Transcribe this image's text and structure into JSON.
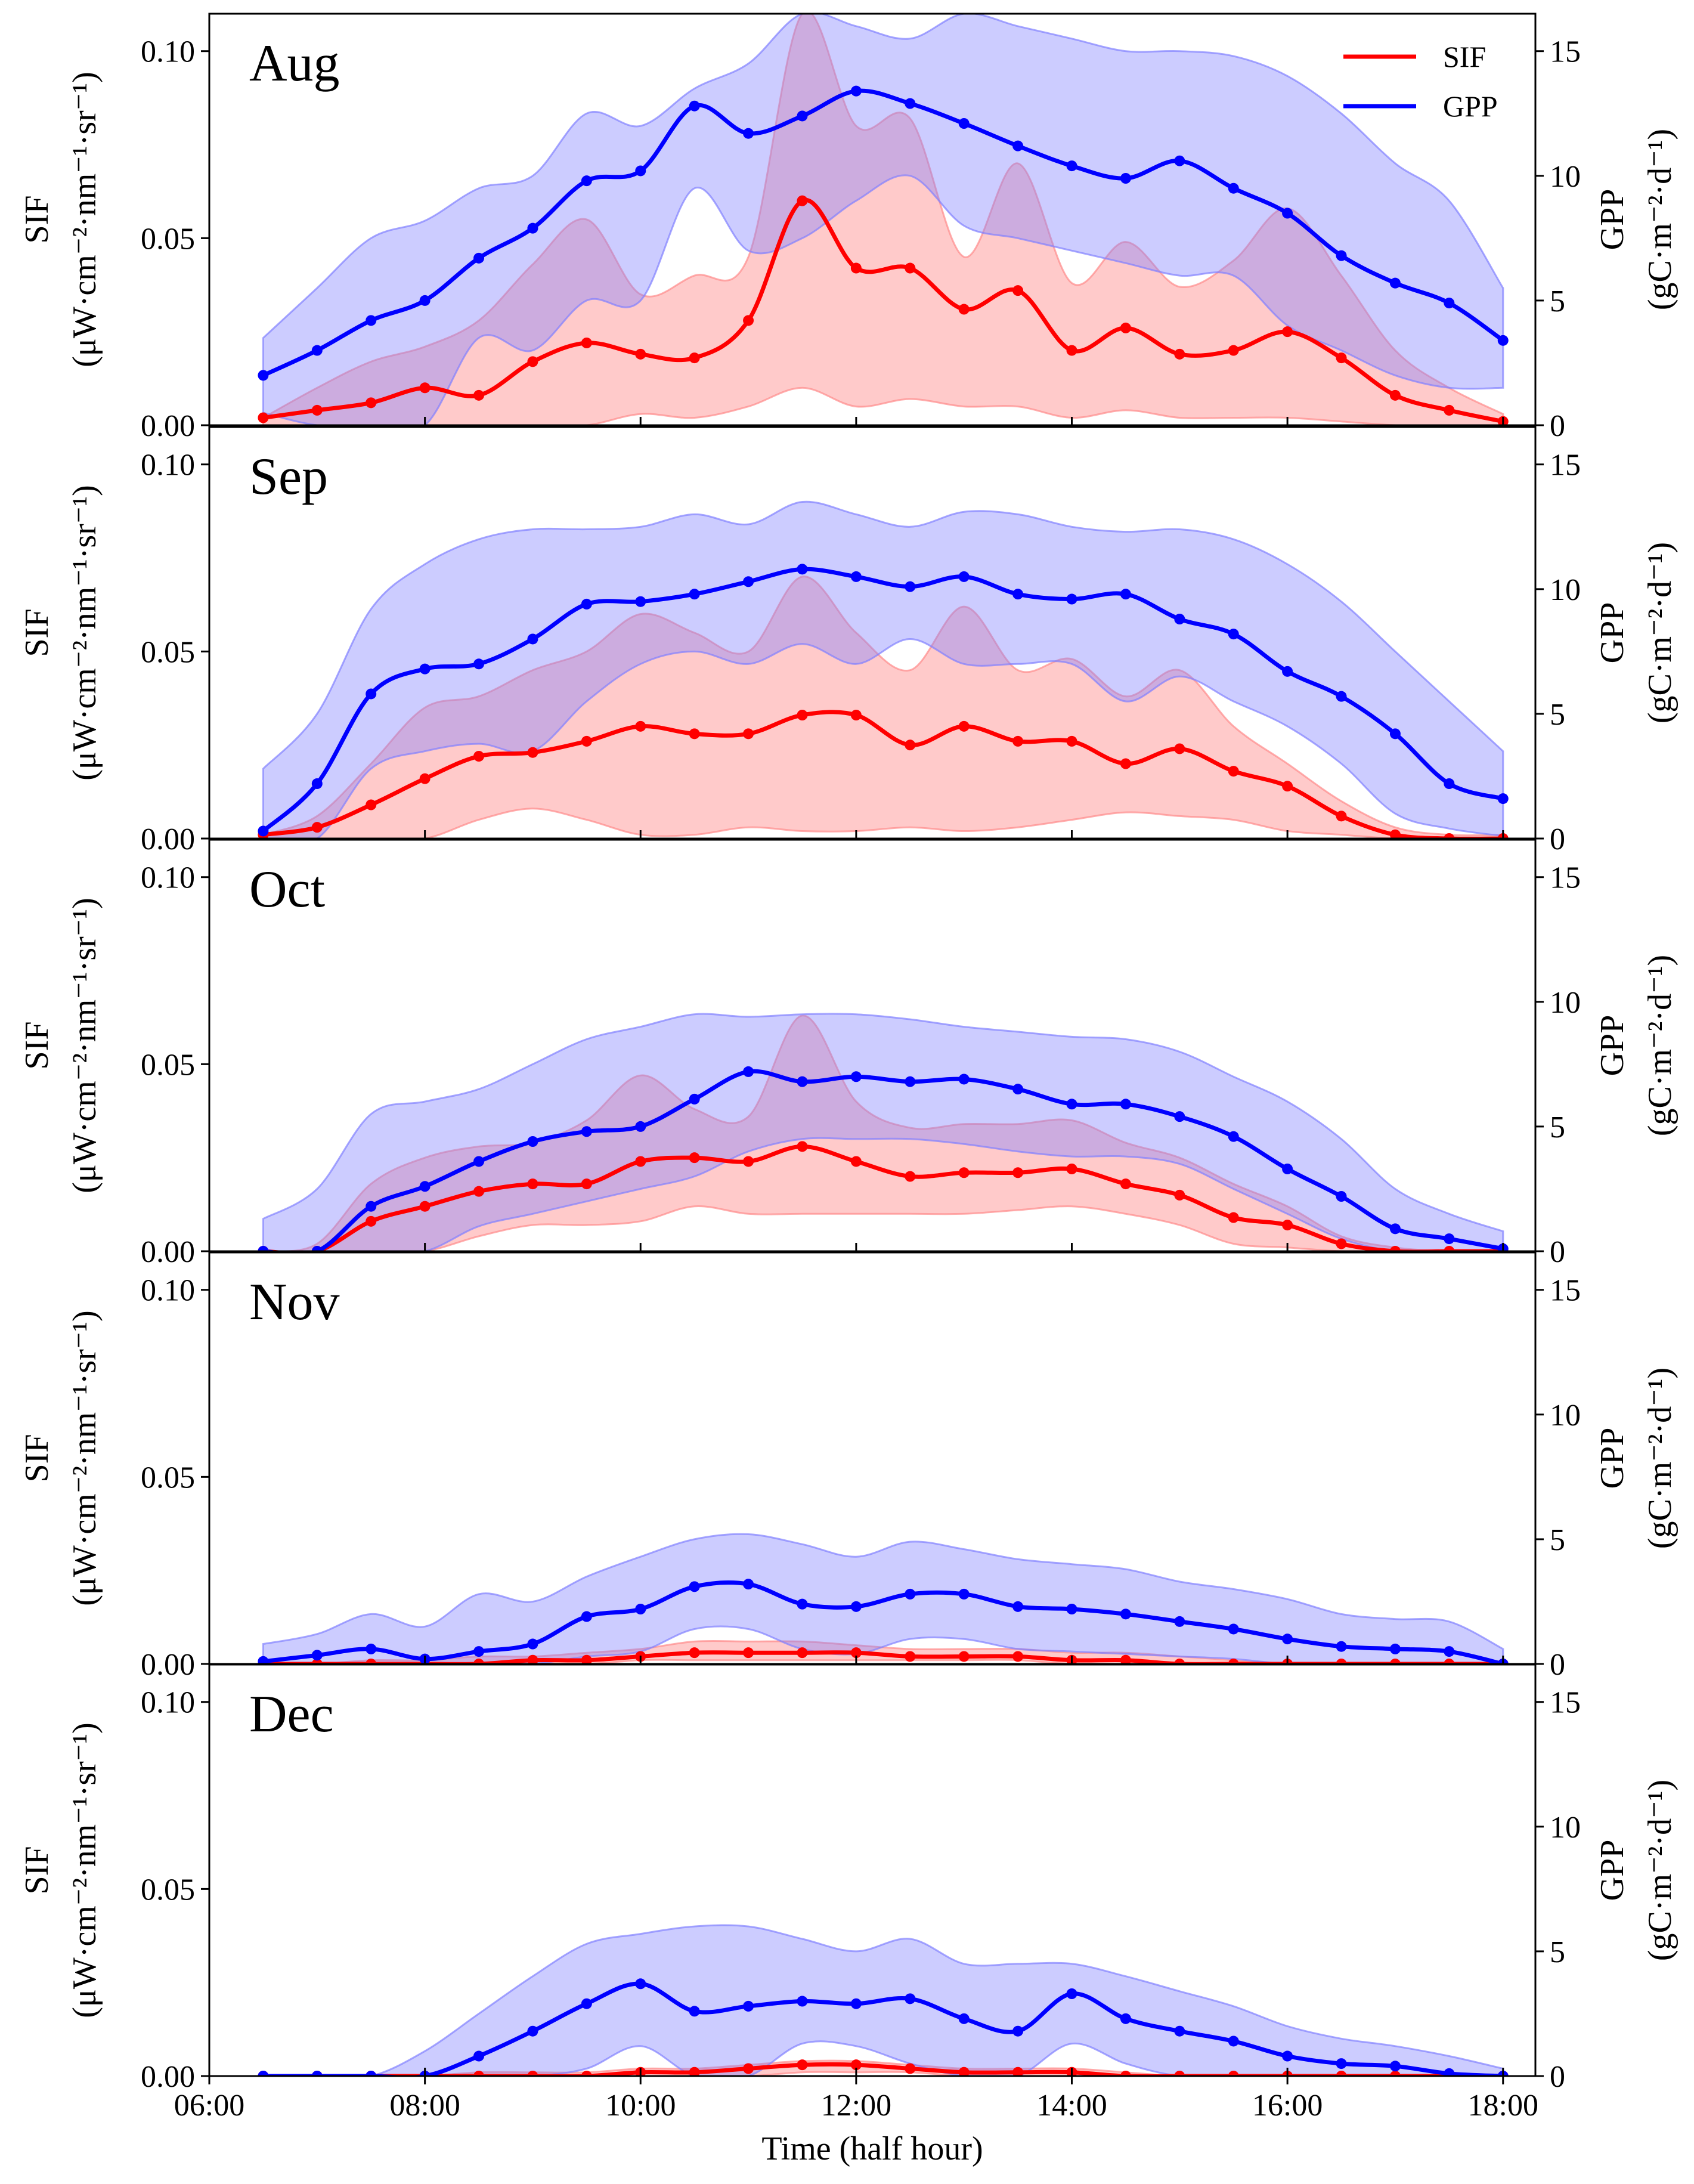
{
  "chart_data": {
    "type": "line",
    "xlabel": "Time (half hour)",
    "x_tick_labels": [
      "06:00",
      "08:00",
      "10:00",
      "12:00",
      "14:00",
      "16:00",
      "18:00"
    ],
    "x_tick_hours": [
      6,
      8,
      10,
      12,
      14,
      16,
      18
    ],
    "xlim": [
      6.0,
      18.3
    ],
    "sif_axis": {
      "label": "SIF",
      "unit": "(μW·cm⁻²·nm⁻¹·sr⁻¹)",
      "ylim": [
        0,
        0.11
      ],
      "tick_values": [
        0,
        0.05,
        0.1
      ],
      "tick_labels": [
        "0.00",
        "0.05",
        "0.10"
      ]
    },
    "gpp_axis": {
      "label": "GPP",
      "unit": "(gC·m⁻²·d⁻¹)",
      "ylim": [
        0,
        16.5
      ],
      "tick_values": [
        0,
        5,
        10,
        15
      ],
      "tick_labels": [
        "0",
        "5",
        "10",
        "15"
      ]
    },
    "legend": [
      {
        "name": "SIF",
        "color": "#ff0000"
      },
      {
        "name": "GPP",
        "color": "#0000ff"
      }
    ],
    "legend_position": "top-right",
    "colors": {
      "sif": "#ff0000",
      "gpp": "#0000ff",
      "sif_band": "#ff8a8a",
      "gpp_band": "#8080ff"
    },
    "x": [
      6.5,
      7.0,
      7.5,
      8.0,
      8.5,
      9.0,
      9.5,
      10.0,
      10.5,
      11.0,
      11.5,
      12.0,
      12.5,
      13.0,
      13.5,
      14.0,
      14.5,
      15.0,
      15.5,
      16.0,
      16.5,
      17.0,
      17.5,
      18.0
    ],
    "panels": [
      {
        "month": "Aug",
        "sif": [
          0.002,
          0.004,
          0.006,
          0.01,
          0.008,
          0.017,
          0.022,
          0.019,
          0.018,
          0.028,
          0.06,
          0.042,
          0.042,
          0.031,
          0.036,
          0.02,
          0.026,
          0.019,
          0.02,
          0.025,
          0.018,
          0.008,
          0.004,
          0.001
        ],
        "sif_band_upper": [
          0.002,
          0.01,
          0.017,
          0.021,
          0.028,
          0.043,
          0.055,
          0.035,
          0.04,
          0.045,
          0.11,
          0.08,
          0.082,
          0.045,
          0.07,
          0.038,
          0.049,
          0.037,
          0.044,
          0.058,
          0.04,
          0.02,
          0.01,
          0.003
        ],
        "sif_band_lower": [
          0,
          0,
          0,
          0,
          0,
          0,
          0,
          0.003,
          0.002,
          0.005,
          0.01,
          0.005,
          0.007,
          0.005,
          0.005,
          0.002,
          0.004,
          0.002,
          0.002,
          0.002,
          0.001,
          0,
          0,
          0
        ],
        "gpp": [
          2.0,
          3.0,
          4.2,
          5.0,
          6.7,
          7.9,
          9.8,
          10.2,
          12.8,
          11.7,
          12.4,
          13.4,
          12.9,
          12.1,
          11.2,
          10.4,
          9.9,
          10.6,
          9.5,
          8.5,
          6.8,
          5.7,
          4.9,
          3.4
        ],
        "gpp_band_upper": [
          3.5,
          5.5,
          7.5,
          8.2,
          9.5,
          10.0,
          12.5,
          12.0,
          13.5,
          14.5,
          16.5,
          16.0,
          15.5,
          16.5,
          16.0,
          15.5,
          15.0,
          15.0,
          14.8,
          14.0,
          12.5,
          10.5,
          9.0,
          5.5
        ],
        "gpp_band_lower": [
          0.5,
          0,
          0,
          0,
          3.5,
          3.0,
          5.0,
          5.0,
          9.5,
          7.0,
          7.5,
          9.0,
          10.0,
          8.0,
          7.5,
          7.0,
          6.5,
          6.0,
          6.0,
          4.0,
          3.0,
          2.0,
          1.5,
          1.5
        ]
      },
      {
        "month": "Sep",
        "sif": [
          0.001,
          0.003,
          0.009,
          0.016,
          0.022,
          0.023,
          0.026,
          0.03,
          0.028,
          0.028,
          0.033,
          0.033,
          0.025,
          0.03,
          0.026,
          0.026,
          0.02,
          0.024,
          0.018,
          0.014,
          0.006,
          0.001,
          0.0,
          0.0
        ],
        "sif_band_upper": [
          0.001,
          0.006,
          0.02,
          0.035,
          0.038,
          0.045,
          0.05,
          0.06,
          0.055,
          0.05,
          0.07,
          0.055,
          0.045,
          0.062,
          0.045,
          0.048,
          0.038,
          0.045,
          0.03,
          0.02,
          0.01,
          0.003,
          0.001,
          0.001
        ],
        "sif_band_lower": [
          0,
          0,
          0,
          0,
          0.005,
          0.008,
          0.005,
          0.001,
          0.001,
          0.003,
          0.002,
          0.002,
          0.003,
          0.002,
          0.003,
          0.005,
          0.007,
          0.006,
          0.005,
          0.002,
          0.001,
          0,
          0,
          0
        ],
        "gpp": [
          0.3,
          2.2,
          5.8,
          6.8,
          7.0,
          8.0,
          9.4,
          9.5,
          9.8,
          10.3,
          10.8,
          10.5,
          10.1,
          10.5,
          9.8,
          9.6,
          9.8,
          8.8,
          8.2,
          6.7,
          5.7,
          4.2,
          2.2,
          1.6
        ],
        "gpp_band_upper": [
          2.8,
          5.0,
          9.2,
          11.0,
          12.0,
          12.4,
          12.4,
          12.5,
          13.0,
          12.6,
          13.5,
          13.0,
          12.5,
          13.1,
          13.0,
          12.5,
          12.3,
          12.4,
          12.0,
          11.0,
          9.5,
          7.5,
          5.5,
          3.5
        ],
        "gpp_band_lower": [
          0,
          0,
          2.8,
          3.5,
          3.8,
          3.5,
          5.5,
          7.0,
          7.5,
          7.0,
          7.8,
          7.0,
          8.0,
          7.0,
          7.0,
          7.0,
          5.5,
          6.5,
          5.5,
          4.5,
          3.0,
          1.0,
          0.4,
          0.1
        ]
      },
      {
        "month": "Oct",
        "sif": [
          0.0,
          0.0,
          0.008,
          0.012,
          0.016,
          0.018,
          0.018,
          0.024,
          0.025,
          0.024,
          0.028,
          0.024,
          0.02,
          0.021,
          0.021,
          0.022,
          0.018,
          0.015,
          0.009,
          0.007,
          0.002,
          0.0,
          0.0,
          0.0
        ],
        "sif_band_upper": [
          0.0,
          0.002,
          0.018,
          0.025,
          0.028,
          0.029,
          0.035,
          0.047,
          0.038,
          0.036,
          0.063,
          0.04,
          0.033,
          0.034,
          0.034,
          0.035,
          0.029,
          0.025,
          0.018,
          0.012,
          0.004,
          0.001,
          0.0,
          0.0
        ],
        "sif_band_lower": [
          0,
          0,
          0,
          0,
          0.004,
          0.007,
          0.007,
          0.008,
          0.012,
          0.01,
          0.01,
          0.01,
          0.01,
          0.01,
          0.011,
          0.012,
          0.01,
          0.007,
          0.002,
          0.001,
          0,
          0,
          0,
          0
        ],
        "gpp": [
          0,
          0,
          1.8,
          2.6,
          3.6,
          4.4,
          4.8,
          5.0,
          6.1,
          7.2,
          6.8,
          7.0,
          6.8,
          6.9,
          6.5,
          5.9,
          5.9,
          5.4,
          4.6,
          3.3,
          2.2,
          0.9,
          0.5,
          0.1
        ],
        "gpp_band_upper": [
          1.3,
          2.5,
          5.5,
          6.0,
          6.5,
          7.5,
          8.5,
          9.0,
          9.5,
          9.4,
          9.5,
          9.5,
          9.3,
          9.0,
          8.8,
          8.6,
          8.5,
          8.0,
          7.0,
          6.0,
          4.5,
          2.5,
          1.5,
          0.8
        ],
        "gpp_band_lower": [
          0,
          0,
          0,
          0,
          1.0,
          1.5,
          2.0,
          2.5,
          3.0,
          4.0,
          4.5,
          4.5,
          4.5,
          4.3,
          4.0,
          3.8,
          3.8,
          3.5,
          2.5,
          1.5,
          0.5,
          0,
          0,
          0
        ]
      },
      {
        "month": "Nov",
        "sif": [
          0.0,
          0.0,
          0.0,
          0.0,
          0.0,
          0.001,
          0.001,
          0.002,
          0.003,
          0.003,
          0.003,
          0.003,
          0.002,
          0.002,
          0.002,
          0.001,
          0.001,
          0.0,
          0.0,
          0.0,
          0.0,
          0.0,
          0.0,
          0.0
        ],
        "sif_band_upper": [
          0.0,
          0.0,
          0.001,
          0.001,
          0.002,
          0.002,
          0.003,
          0.004,
          0.006,
          0.006,
          0.006,
          0.005,
          0.004,
          0.004,
          0.004,
          0.003,
          0.003,
          0.002,
          0.001,
          0.0,
          0.0,
          0.0,
          0.0,
          0.0
        ],
        "sif_band_lower": [
          0,
          0,
          0,
          0,
          0,
          0,
          0,
          0.001,
          0.001,
          0.001,
          0.001,
          0.001,
          0.001,
          0.001,
          0.001,
          0,
          0,
          0,
          0,
          0,
          0,
          0,
          0,
          0
        ],
        "gpp": [
          0.1,
          0.35,
          0.6,
          0.2,
          0.5,
          0.8,
          1.9,
          2.2,
          3.1,
          3.2,
          2.4,
          2.3,
          2.8,
          2.8,
          2.3,
          2.2,
          2.0,
          1.7,
          1.4,
          1.0,
          0.7,
          0.6,
          0.5,
          0.0
        ],
        "gpp_band_upper": [
          0.8,
          1.2,
          2.0,
          1.5,
          2.8,
          2.5,
          3.5,
          4.3,
          5.0,
          5.2,
          4.8,
          4.3,
          4.9,
          4.6,
          4.2,
          4.0,
          3.8,
          3.3,
          3.0,
          2.6,
          2.0,
          1.8,
          1.7,
          0.6
        ],
        "gpp_band_lower": [
          0,
          0,
          0,
          0,
          0,
          0,
          0.3,
          0.5,
          1.4,
          1.4,
          0.6,
          0.4,
          1.0,
          1.0,
          0.6,
          0.5,
          0.4,
          0.3,
          0.2,
          0,
          0,
          0,
          0,
          0
        ]
      },
      {
        "month": "Dec",
        "sif": [
          0.0,
          0.0,
          0.0,
          0.0,
          0.0,
          0.0,
          0.0,
          0.001,
          0.001,
          0.002,
          0.003,
          0.003,
          0.002,
          0.001,
          0.001,
          0.001,
          0.0,
          0.0,
          0.0,
          0.0,
          0.0,
          0.0,
          0.0,
          0.0
        ],
        "sif_band_upper": [
          0.0,
          0.0,
          0.0,
          0.0,
          0.001,
          0.001,
          0.001,
          0.002,
          0.002,
          0.003,
          0.004,
          0.004,
          0.003,
          0.002,
          0.002,
          0.002,
          0.001,
          0.0,
          0.0,
          0.0,
          0.0,
          0.0,
          0.0,
          0.0
        ],
        "sif_band_lower": [
          0,
          0,
          0,
          0,
          0,
          0,
          0,
          0,
          0,
          0,
          0.001,
          0.001,
          0.001,
          0,
          0,
          0,
          0,
          0,
          0,
          0,
          0,
          0,
          0,
          0
        ],
        "gpp": [
          0.0,
          0.0,
          0.0,
          0.0,
          0.8,
          1.8,
          2.9,
          3.7,
          2.6,
          2.8,
          3.0,
          2.9,
          3.1,
          2.3,
          1.8,
          3.3,
          2.3,
          1.8,
          1.4,
          0.8,
          0.5,
          0.4,
          0.1,
          0.0
        ],
        "gpp_band_upper": [
          0.0,
          0.0,
          0.0,
          1.0,
          2.5,
          4.0,
          5.3,
          5.7,
          6.0,
          6.0,
          5.5,
          5.0,
          5.5,
          4.5,
          4.5,
          4.5,
          4.0,
          3.4,
          2.8,
          2.0,
          1.5,
          1.2,
          0.8,
          0.3
        ],
        "gpp_band_lower": [
          0,
          0,
          0,
          0,
          0,
          0,
          0.3,
          1.2,
          0,
          0,
          1.3,
          1.2,
          0.5,
          0,
          0,
          1.3,
          0.5,
          0,
          0,
          0,
          0,
          0,
          0,
          0
        ]
      }
    ]
  }
}
